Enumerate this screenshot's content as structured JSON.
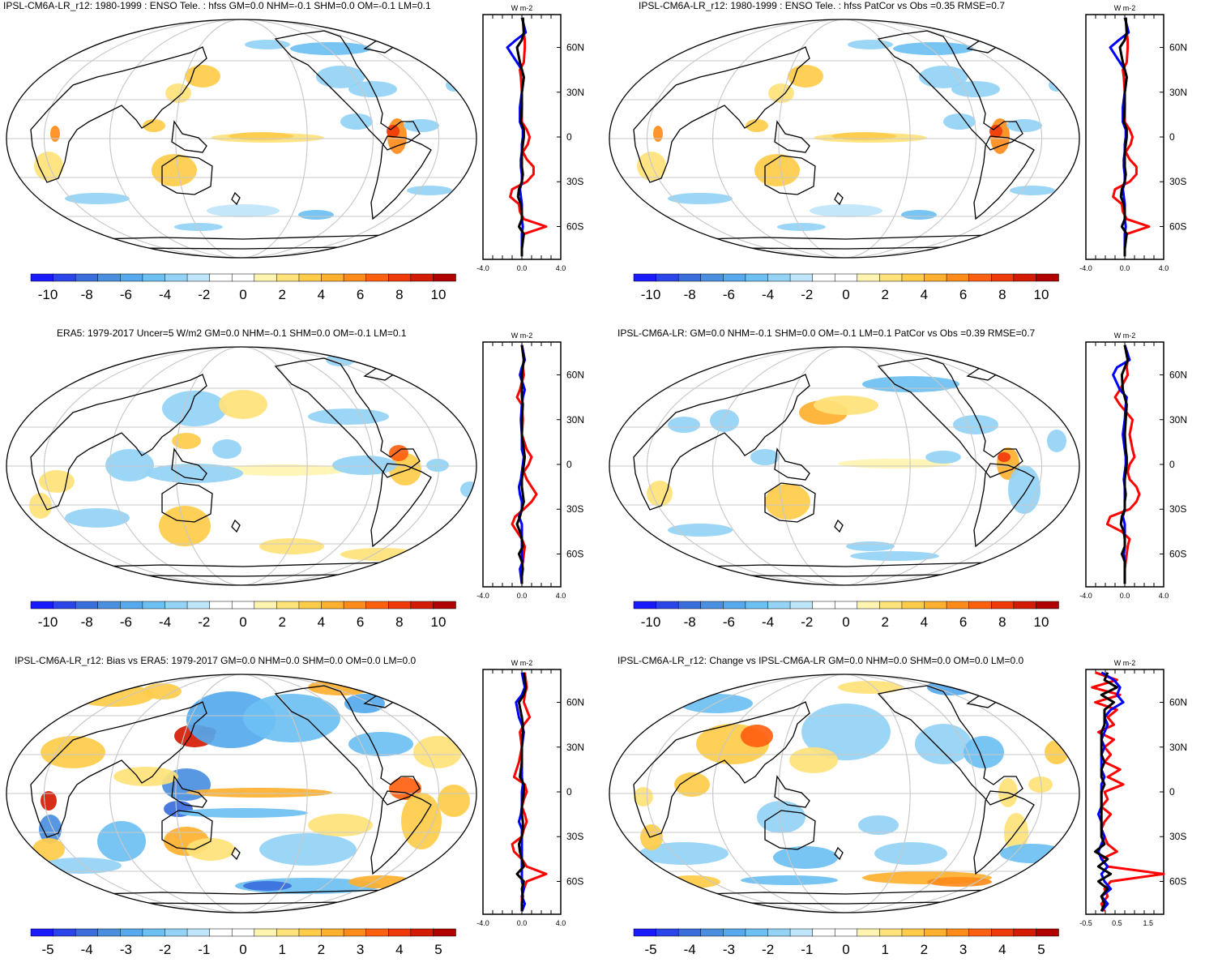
{
  "colors": {
    "scale": [
      "#1a1aff",
      "#2b45e8",
      "#3a6edc",
      "#4a8fe0",
      "#55a9ec",
      "#6cc0f2",
      "#94d3f5",
      "#bfe6f8",
      "#ffffff",
      "#ffffff",
      "#fff4b0",
      "#ffe27a",
      "#ffcc4a",
      "#ffb02e",
      "#ff8c1a",
      "#ff6010",
      "#f03a0a",
      "#d41b05",
      "#b00000"
    ],
    "land": "#000000",
    "grid": "#c8c8c8",
    "profile_red": "#ff0000",
    "profile_blue": "#0000ff",
    "profile_black": "#000000"
  },
  "panels": [
    {
      "title": "IPSL-CM6A-LR_r12: 1980-1999 : ENSO Tele. : hfss GM=0.0 NHM=-0.1 SHM=0.0 OM=-0.1 LM=0.1",
      "colorbar_labels": [
        "-10",
        "-8",
        "-6",
        "-4",
        "-2",
        "0",
        "2",
        "4",
        "6",
        "8",
        "10"
      ],
      "profile": {
        "units": "W m-2",
        "xlabels": [
          "-4.0",
          "0.0",
          "4.0"
        ],
        "xlim": [
          -4,
          4
        ],
        "lat_labels": [
          "60N",
          "30N",
          "0",
          "30S",
          "60S"
        ]
      }
    },
    {
      "title": "IPSL-CM6A-LR_r12: 1980-1999 : ENSO Tele. : hfss PatCor vs Obs =0.35 RMSE=0.7",
      "colorbar_labels": [
        "-10",
        "-8",
        "-6",
        "-4",
        "-2",
        "0",
        "2",
        "4",
        "6",
        "8",
        "10"
      ],
      "profile": {
        "units": "W m-2",
        "xlabels": [
          "-4.0",
          "0.0",
          "4.0"
        ],
        "xlim": [
          -4,
          4
        ],
        "lat_labels": [
          "60N",
          "30N",
          "0",
          "30S",
          "60S"
        ]
      }
    },
    {
      "title": "ERA5: 1979-2017 Uncer=5 W/m2 GM=0.0 NHM=-0.1 SHM=0.0 OM=-0.1 LM=0.1",
      "colorbar_labels": [
        "-10",
        "-8",
        "-6",
        "-4",
        "-2",
        "0",
        "2",
        "4",
        "6",
        "8",
        "10"
      ],
      "profile": {
        "units": "W m-2",
        "xlabels": [
          "-4.0",
          "0.0",
          "4.0"
        ],
        "xlim": [
          -4,
          4
        ],
        "lat_labels": [
          "60N",
          "30N",
          "0",
          "30S",
          "60S"
        ]
      }
    },
    {
      "title": "IPSL-CM6A-LR: GM=0.0 NHM=-0.1 SHM=0.0 OM=-0.1 LM=0.1 PatCor vs Obs =0.39 RMSE=0.7",
      "colorbar_labels": [
        "-10",
        "-8",
        "-6",
        "-4",
        "-2",
        "0",
        "2",
        "4",
        "6",
        "8",
        "10"
      ],
      "profile": {
        "units": "W m-2",
        "xlabels": [
          "-4.0",
          "0.0",
          "4.0"
        ],
        "xlim": [
          -4,
          4
        ],
        "lat_labels": [
          "60N",
          "30N",
          "0",
          "30S",
          "60S"
        ]
      }
    },
    {
      "title": "IPSL-CM6A-LR_r12: Bias vs ERA5: 1979-2017 GM=0.0 NHM=0.0 SHM=0.0 OM=0.0 LM=0.0",
      "colorbar_labels": [
        "-5",
        "-4",
        "-3",
        "-2",
        "-1",
        "0",
        "1",
        "2",
        "3",
        "4",
        "5"
      ],
      "profile": {
        "units": "W m-2",
        "xlabels": [
          "-4.0",
          "0.0",
          "4.0"
        ],
        "xlim": [
          -4,
          4
        ],
        "lat_labels": [
          "60N",
          "30N",
          "0",
          "30S",
          "60S"
        ]
      }
    },
    {
      "title": "IPSL-CM6A-LR_r12: Change vs IPSL-CM6A-LR GM=0.0 NHM=0.0 SHM=0.0 OM=0.0 LM=0.0",
      "colorbar_labels": [
        "-5",
        "-4",
        "-3",
        "-2",
        "-1",
        "0",
        "1",
        "2",
        "3",
        "4",
        "5"
      ],
      "profile": {
        "units": "W m-2",
        "xlabels": [
          "-0.5",
          "0.5",
          "1.5"
        ],
        "xlim": [
          -0.5,
          2.0
        ],
        "lat_labels": [
          "60N",
          "30N",
          "0",
          "30S",
          "60S"
        ]
      }
    }
  ],
  "chart_data": [
    {
      "type": "heatmap",
      "title": "IPSL-CM6A-LR_r12: 1980-1999 : ENSO Tele. : hfss GM=0.0 NHM=-0.1 SHM=0.0 OM=-0.1 LM=0.1",
      "colorbar_range": [
        -11,
        11
      ],
      "zonal_profile": {
        "type": "line",
        "xlim": [
          -4,
          4
        ],
        "lat": [
          80,
          70,
          65,
          60,
          50,
          45,
          40,
          30,
          20,
          10,
          5,
          0,
          -5,
          -10,
          -15,
          -20,
          -25,
          -30,
          -35,
          -40,
          -45,
          -50,
          -55,
          -60,
          -65,
          -70,
          -75,
          -80
        ],
        "series": [
          {
            "values": [
              0.1,
              0.2,
              0.3,
              0.3,
              0.2,
              -0.2,
              -0.1,
              0,
              0,
              0,
              0.5,
              0.8,
              0.6,
              0.1,
              0.5,
              1.2,
              1.2,
              0.5,
              -1.0,
              -1.2,
              -0.3,
              -0.2,
              0.2,
              2.5,
              0.2,
              0,
              0,
              0
            ]
          },
          {
            "values": [
              0,
              0.4,
              -0.6,
              -1.5,
              -0.5,
              0,
              0.2,
              0,
              -0.2,
              -0.2,
              0.1,
              0.1,
              0,
              0,
              -0.1,
              -0.1,
              0,
              0,
              -0.2,
              -0.1,
              0,
              0,
              0,
              0.1,
              0,
              0,
              0,
              0
            ]
          },
          {
            "values": [
              0.1,
              0.2,
              0,
              -0.5,
              -0.2,
              0,
              0.2,
              0,
              0,
              -0.1,
              0.2,
              0.2,
              0.1,
              0,
              0,
              0,
              0.1,
              0,
              -0.3,
              -0.4,
              -0.1,
              0,
              0,
              -0.3,
              0.2,
              0.1,
              0,
              0
            ]
          }
        ]
      }
    },
    {
      "type": "heatmap",
      "title": "IPSL-CM6A-LR_r12: 1980-1999 : ENSO Tele. : hfss PatCor vs Obs =0.35 RMSE=0.7",
      "colorbar_range": [
        -11,
        11
      ],
      "zonal_profile": {
        "type": "line",
        "xlim": [
          -4,
          4
        ],
        "lat": [
          80,
          70,
          65,
          60,
          50,
          45,
          40,
          30,
          20,
          10,
          5,
          0,
          -5,
          -10,
          -15,
          -20,
          -25,
          -30,
          -35,
          -40,
          -45,
          -50,
          -55,
          -60,
          -65,
          -70,
          -75,
          -80
        ],
        "series": [
          {
            "values": [
              0.1,
              0.2,
              0.3,
              0.3,
              0.2,
              -0.2,
              -0.1,
              0,
              0,
              0,
              0.5,
              0.8,
              0.6,
              0.1,
              0.5,
              1.2,
              1.2,
              0.5,
              -1.0,
              -1.2,
              -0.3,
              -0.2,
              0.2,
              2.5,
              0.2,
              0,
              0,
              0
            ]
          },
          {
            "values": [
              0,
              0.4,
              -0.6,
              -1.5,
              -0.5,
              0,
              0.2,
              0,
              -0.2,
              -0.2,
              0.1,
              0.1,
              0,
              0,
              -0.1,
              -0.1,
              0,
              0,
              -0.2,
              -0.1,
              0,
              0,
              0,
              0.1,
              0,
              0,
              0,
              0
            ]
          },
          {
            "values": [
              0.1,
              0.2,
              0,
              -0.5,
              -0.2,
              0,
              0.2,
              0,
              0,
              -0.1,
              0.2,
              0.2,
              0.1,
              0,
              0,
              0,
              0.1,
              0,
              -0.3,
              -0.4,
              -0.1,
              0,
              0,
              -0.3,
              0.2,
              0.1,
              0,
              0
            ]
          }
        ]
      }
    },
    {
      "type": "heatmap",
      "title": "ERA5: 1979-2017 Uncer=5 W/m2 GM=0.0 NHM=-0.1 SHM=0.0 OM=-0.1 LM=0.1",
      "colorbar_range": [
        -11,
        11
      ],
      "zonal_profile": {
        "type": "line",
        "xlim": [
          -4,
          4
        ],
        "lat": [
          80,
          70,
          65,
          60,
          50,
          45,
          40,
          30,
          20,
          10,
          5,
          0,
          -5,
          -10,
          -15,
          -20,
          -25,
          -30,
          -35,
          -40,
          -45,
          -50,
          -55,
          -60,
          -65,
          -70,
          -75,
          -80
        ],
        "series": [
          {
            "values": [
              0,
              0.2,
              0.1,
              0.2,
              -0.2,
              -0.5,
              0,
              0.1,
              0,
              0.5,
              1.0,
              0.7,
              0.2,
              0.5,
              1.0,
              1.5,
              1.0,
              0.2,
              -0.7,
              -1.0,
              -0.5,
              0,
              0.3,
              0.2,
              0.1,
              0,
              0,
              0
            ]
          },
          {
            "values": [
              0,
              0.3,
              0,
              -0.2,
              0.3,
              0.1,
              0,
              -0.1,
              0,
              0,
              0.2,
              0.1,
              0,
              -0.1,
              -0.3,
              -0.2,
              0,
              0,
              -0.3,
              0,
              0,
              0,
              0,
              0,
              0.1,
              -0.2,
              -0.1,
              0
            ]
          },
          {
            "values": [
              0,
              0.2,
              0.1,
              0,
              0,
              0,
              0.1,
              0,
              0,
              0.2,
              0.3,
              0.2,
              0.1,
              0,
              0,
              0.1,
              0.2,
              0,
              -0.2,
              -0.5,
              -0.2,
              0,
              0.1,
              -0.3,
              0,
              0.1,
              0,
              0
            ]
          }
        ]
      }
    },
    {
      "type": "heatmap",
      "title": "IPSL-CM6A-LR: GM=0.0 NHM=-0.1 SHM=0.0 OM=-0.1 LM=0.1 PatCor vs Obs =0.39 RMSE=0.7",
      "colorbar_range": [
        -11,
        11
      ],
      "zonal_profile": {
        "type": "line",
        "xlim": [
          -4,
          4
        ],
        "lat": [
          80,
          70,
          65,
          60,
          50,
          45,
          40,
          30,
          20,
          10,
          5,
          0,
          -5,
          -10,
          -15,
          -20,
          -25,
          -30,
          -35,
          -40,
          -45,
          -50,
          -55,
          -60,
          -65,
          -70,
          -75,
          -80
        ],
        "series": [
          {
            "values": [
              0,
              0.3,
              0.2,
              0.3,
              -0.5,
              -1.0,
              -0.5,
              0.8,
              0.5,
              0.8,
              1.0,
              0.5,
              0.3,
              0.5,
              1.2,
              1.5,
              1.2,
              0.5,
              -1.5,
              -1.8,
              -0.3,
              0.5,
              0.3,
              0.2,
              0.1,
              0,
              0,
              0
            ]
          },
          {
            "values": [
              0,
              0.5,
              -0.8,
              -1.2,
              -0.5,
              0.2,
              0.1,
              0,
              -0.2,
              0,
              0.1,
              0.1,
              0,
              -0.1,
              0,
              0,
              0,
              0,
              -0.2,
              0,
              0,
              0,
              0,
              -0.1,
              0,
              0,
              0,
              0
            ]
          },
          {
            "values": [
              0,
              0.3,
              0,
              -0.3,
              -0.2,
              0,
              0.2,
              0.1,
              0,
              0.1,
              0.2,
              0.2,
              0.1,
              0,
              0,
              0.1,
              0,
              0,
              -0.3,
              -0.4,
              -0.1,
              0,
              0,
              -0.3,
              0,
              0,
              0,
              0
            ]
          }
        ]
      }
    },
    {
      "type": "heatmap",
      "title": "IPSL-CM6A-LR_r12: Bias vs ERA5: 1979-2017 GM=0.0 NHM=0.0 SHM=0.0 OM=0.0 LM=0.0",
      "colorbar_range": [
        -5.5,
        5.5
      ],
      "zonal_profile": {
        "type": "line",
        "xlim": [
          -4,
          4
        ],
        "lat": [
          80,
          70,
          65,
          60,
          50,
          45,
          40,
          30,
          20,
          10,
          5,
          0,
          -5,
          -10,
          -15,
          -20,
          -25,
          -30,
          -35,
          -40,
          -45,
          -50,
          -55,
          -60,
          -65,
          -70,
          -75,
          -80
        ],
        "series": [
          {
            "values": [
              0.3,
              0.5,
              0.3,
              0.2,
              0.8,
              0.2,
              -0.2,
              0,
              -0.3,
              -0.8,
              0.3,
              0.5,
              0.2,
              0,
              0.3,
              0.5,
              0.2,
              0,
              -1.0,
              -0.8,
              0,
              0.5,
              2.5,
              0.5,
              0.2,
              0,
              0,
              0
            ]
          },
          {
            "values": [
              0,
              0.3,
              0,
              -0.6,
              -0.3,
              0,
              0.2,
              0,
              0,
              0,
              0.1,
              0,
              0,
              0,
              -0.1,
              -0.3,
              0,
              0,
              0,
              0,
              0,
              0,
              0,
              0,
              0.2,
              0,
              0.3,
              0
            ]
          },
          {
            "values": [
              0.2,
              0.4,
              0.2,
              -0.3,
              0,
              0.1,
              0.1,
              0,
              0,
              -0.2,
              0.2,
              0.2,
              0.1,
              0,
              0,
              0.1,
              0.1,
              0,
              -0.3,
              -0.2,
              0,
              0.2,
              -0.5,
              0.2,
              0,
              0.1,
              0,
              0
            ]
          }
        ]
      }
    },
    {
      "type": "heatmap",
      "title": "IPSL-CM6A-LR_r12: Change vs IPSL-CM6A-LR GM=0.0 NHM=0.0 SHM=0.0 OM=0.0 LM=0.0",
      "colorbar_range": [
        -5.5,
        5.5
      ],
      "zonal_profile": {
        "type": "line",
        "xlim": [
          -0.5,
          2.0
        ],
        "lat": [
          80,
          75,
          70,
          65,
          60,
          55,
          50,
          45,
          40,
          35,
          30,
          25,
          20,
          15,
          10,
          5,
          0,
          -5,
          -10,
          -15,
          -20,
          -25,
          -30,
          -35,
          -40,
          -45,
          -50,
          -55,
          -60,
          -65,
          -70,
          -75,
          -80
        ],
        "series": [
          {
            "values": [
              -0.2,
              0.5,
              -0.3,
              0.6,
              -0.2,
              0.5,
              0.2,
              0.4,
              -0.1,
              0.4,
              0.1,
              0.3,
              0.1,
              0.6,
              0.2,
              0.7,
              0.1,
              0.2,
              0,
              0.3,
              0.1,
              0,
              0.1,
              0.2,
              0.5,
              0,
              0.2,
              2.0,
              0.3,
              0.1,
              0.2,
              0,
              0.1
            ]
          },
          {
            "values": [
              0,
              0.4,
              0.6,
              0.5,
              0.7,
              0.3,
              0.1,
              0.2,
              0.1,
              0,
              0.1,
              0,
              0,
              0,
              0.1,
              0,
              0,
              0,
              0,
              -0.1,
              0,
              0,
              0.1,
              0,
              -0.1,
              0,
              0.2,
              0,
              0.1,
              0.3,
              0,
              0.2,
              0
            ]
          },
          {
            "values": [
              0.2,
              0.1,
              0.5,
              0,
              0.4,
              0.1,
              0.1,
              0.1,
              0,
              0,
              0,
              0,
              0.1,
              0,
              0,
              0.1,
              0,
              0,
              0,
              0,
              0,
              0,
              0,
              0.1,
              -0.2,
              0.2,
              -0.1,
              0.3,
              -0.1,
              0.2,
              0,
              0.1,
              0
            ]
          }
        ]
      }
    }
  ]
}
